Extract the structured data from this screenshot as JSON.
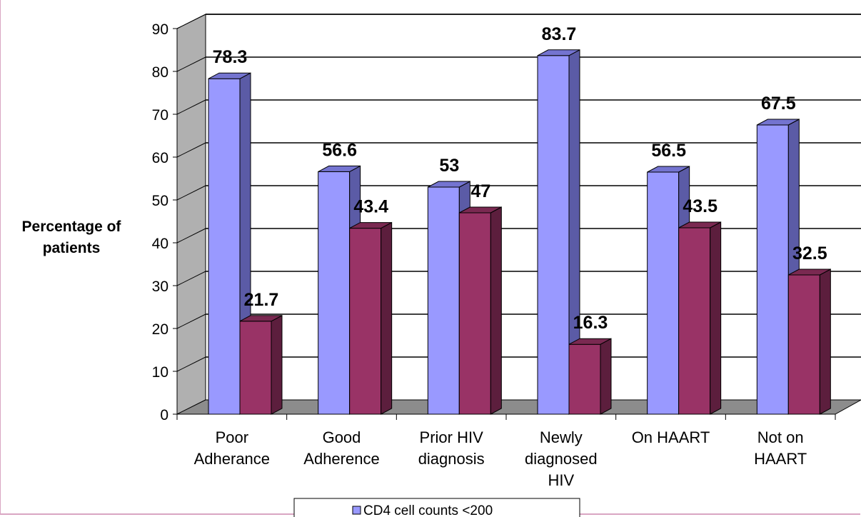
{
  "chart_data": {
    "type": "bar",
    "categories": [
      [
        "Poor",
        "Adherance"
      ],
      [
        "Good",
        "Adherence"
      ],
      [
        "Prior HIV",
        "diagnosis"
      ],
      [
        "Newly",
        "diagnosed",
        "HIV"
      ],
      [
        "On HAART"
      ],
      [
        "Not on",
        "HAART"
      ]
    ],
    "series": [
      {
        "name": "CD4 cell counts <200",
        "values": [
          78.3,
          56.6,
          53,
          83.7,
          56.5,
          67.5
        ]
      },
      {
        "values": [
          21.7,
          43.4,
          47,
          16.3,
          43.5,
          32.5
        ]
      }
    ],
    "value_labels": [
      [
        "78.3",
        "56.6",
        "53",
        "83.7",
        "56.5",
        "67.5"
      ],
      [
        "21.7",
        "43.4",
        "47",
        "16.3",
        "43.5",
        "32.5"
      ]
    ],
    "ylabel": [
      "Percentage of",
      "patients"
    ],
    "ylim": [
      0,
      90
    ],
    "yticks": [
      "0",
      "10",
      "20",
      "30",
      "40",
      "50",
      "60",
      "70",
      "80",
      "90"
    ],
    "grid": true,
    "legend_position": "bottom",
    "colors": {
      "series1_front": "#9999ff",
      "series1_side": "#5b5ba6",
      "series1_top": "#7474d0",
      "series2_front": "#993366",
      "series2_side": "#5c1e3d",
      "series2_top": "#7a2951",
      "wall": "#b0b0b0",
      "floor": "#8c8c8c"
    }
  }
}
